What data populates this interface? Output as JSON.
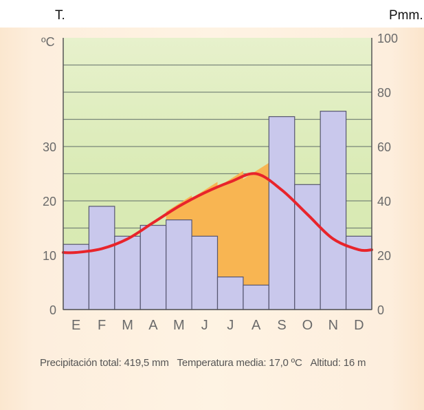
{
  "header": {
    "left": "T.",
    "right": "Pmm."
  },
  "colors": {
    "plot_top": "#e6f0c8",
    "plot_mid": "#dbeab6",
    "bar_fill": "#c9c8ec",
    "bar_stroke": "#555570",
    "temp_line": "#e8242b",
    "arid_fill": "#f8b552",
    "grid": "#5f6d68"
  },
  "chart_data": {
    "type": "bar",
    "combo": "climograph: precipitation bars + temperature line",
    "categories": [
      "E",
      "F",
      "M",
      "A",
      "M",
      "J",
      "J",
      "A",
      "S",
      "O",
      "N",
      "D"
    ],
    "series": [
      {
        "type": "bar",
        "axis": "right",
        "values": [
          24,
          38,
          27,
          31,
          33,
          27,
          12,
          9,
          71,
          46,
          73,
          27
        ]
      },
      {
        "type": "line",
        "axis": "left",
        "values": [
          10.5,
          11.2,
          13,
          16,
          19,
          21.5,
          23.5,
          25,
          22,
          17.5,
          13,
          11
        ]
      }
    ],
    "left_axis": {
      "label": "ºC",
      "ticks": [
        "0",
        "10",
        "20",
        "30"
      ],
      "range": [
        0,
        50
      ]
    },
    "right_axis": {
      "ticks": [
        "0",
        "20",
        "40",
        "60",
        "80",
        "100"
      ],
      "range": [
        0,
        100
      ]
    },
    "grid": true,
    "annotations": {
      "precipitation": "Precipitación total: 419,5 mm",
      "temperature": "Temperatura media: 17,0 ºC",
      "altitude": "Altitud: 16 m"
    }
  }
}
